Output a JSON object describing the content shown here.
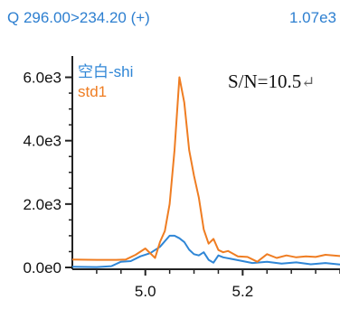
{
  "header": {
    "transition": "Q 296.00>234.20 (+)",
    "max_intensity": "1.07e3"
  },
  "annotation": {
    "snr_text": "S/N=10.5",
    "return_glyph": "↵"
  },
  "colors": {
    "header_blue": "#2d7fd0",
    "blank_series": "#2f86d6",
    "std1_series": "#ef7d22"
  },
  "chart_data": {
    "type": "line",
    "xlim": [
      4.85,
      5.4
    ],
    "ylim": [
      0,
      6500
    ],
    "x_ticks": [
      5.0,
      5.2
    ],
    "x_tick_labels": [
      "5.0",
      "5.2"
    ],
    "y_ticks": [
      0,
      2000,
      4000,
      6000
    ],
    "y_tick_labels": [
      "0.0e0",
      "2.0e3",
      "4.0e3",
      "6.0e3"
    ],
    "grid": false,
    "legend_position": "top-left",
    "series": [
      {
        "name": "空白-shi",
        "color": "#2f86d6",
        "x": [
          4.85,
          4.9,
          4.93,
          4.95,
          4.97,
          4.99,
          5.01,
          5.03,
          5.05,
          5.06,
          5.07,
          5.08,
          5.09,
          5.1,
          5.11,
          5.12,
          5.13,
          5.14,
          5.15,
          5.16,
          5.18,
          5.2,
          5.22,
          5.25,
          5.28,
          5.31,
          5.34,
          5.37,
          5.4
        ],
        "y": [
          20,
          10,
          40,
          180,
          200,
          350,
          450,
          650,
          1000,
          1000,
          920,
          800,
          560,
          420,
          380,
          480,
          240,
          150,
          380,
          320,
          260,
          200,
          140,
          180,
          120,
          160,
          100,
          140,
          90
        ]
      },
      {
        "name": "std1",
        "color": "#ef7d22",
        "x": [
          4.85,
          4.9,
          4.94,
          4.96,
          4.98,
          5.0,
          5.02,
          5.03,
          5.04,
          5.05,
          5.06,
          5.07,
          5.08,
          5.09,
          5.1,
          5.11,
          5.12,
          5.13,
          5.14,
          5.15,
          5.16,
          5.17,
          5.19,
          5.21,
          5.23,
          5.25,
          5.27,
          5.29,
          5.31,
          5.33,
          5.35,
          5.37,
          5.4
        ],
        "y": [
          250,
          240,
          240,
          250,
          400,
          600,
          300,
          800,
          1150,
          2000,
          3700,
          6000,
          5200,
          3700,
          2900,
          2200,
          1200,
          750,
          900,
          550,
          480,
          520,
          350,
          330,
          180,
          420,
          300,
          380,
          320,
          350,
          330,
          400,
          360
        ]
      }
    ]
  }
}
